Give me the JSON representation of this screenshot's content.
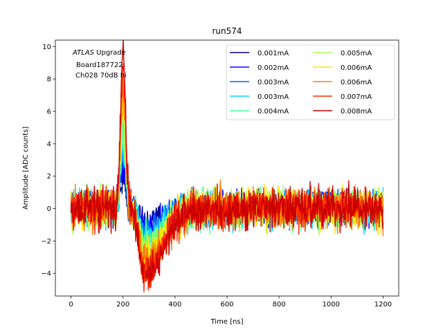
{
  "chart_data": {
    "type": "line",
    "title": "run574",
    "xlabel": "Time [ns]",
    "ylabel": "Amplitude [ADC counts]",
    "xlim": [
      -60,
      1260
    ],
    "ylim": [
      -5.4,
      10.4
    ],
    "xticks": [
      0,
      200,
      400,
      600,
      800,
      1000,
      1200
    ],
    "yticks": [
      -4,
      -2,
      0,
      2,
      4,
      6,
      8,
      10
    ],
    "grid": false,
    "legend_position": "top-right",
    "legend_columns": 2,
    "annotation": {
      "line1_italic": "ATLAS",
      "line1_rest": " Upgrade",
      "line2": "Board187722",
      "line3": "Ch028 70dB hi"
    },
    "x_range_data": [
      0,
      1200
    ],
    "sample_spacing_ns": 1.5,
    "pulse_model": {
      "peak_time_ns": 200,
      "undershoot_time_ns": 285,
      "note_visible": ""
    },
    "series": [
      {
        "name": "0.001mA",
        "color": "#00007f",
        "peak": 1.6,
        "undershoot": -0.9,
        "noise": 0.45
      },
      {
        "name": "0.002mA",
        "color": "#0000ff",
        "peak": 2.6,
        "undershoot": -1.2,
        "noise": 0.5
      },
      {
        "name": "0.003mA",
        "color": "#0063ff",
        "peak": 3.2,
        "undershoot": -1.5,
        "noise": 0.5
      },
      {
        "name": "0.003mA",
        "color": "#00d5ff",
        "peak": 3.6,
        "undershoot": -1.7,
        "noise": 0.55
      },
      {
        "name": "0.004mA",
        "color": "#4effa9",
        "peak": 4.6,
        "undershoot": -2.2,
        "noise": 0.6
      },
      {
        "name": "0.005mA",
        "color": "#a9ff4e",
        "peak": 5.6,
        "undershoot": -2.6,
        "noise": 0.6
      },
      {
        "name": "0.006mA",
        "color": "#ffe500",
        "peak": 6.6,
        "undershoot": -3.0,
        "noise": 0.6
      },
      {
        "name": "0.006mA",
        "color": "#ff8000",
        "peak": 7.6,
        "undershoot": -3.5,
        "noise": 0.6
      },
      {
        "name": "0.007mA",
        "color": "#ff2a00",
        "peak": 8.6,
        "undershoot": -3.9,
        "noise": 0.6
      },
      {
        "name": "0.008mA",
        "color": "#cc0000",
        "peak": 9.5,
        "undershoot": -4.3,
        "noise": 0.6
      }
    ]
  }
}
